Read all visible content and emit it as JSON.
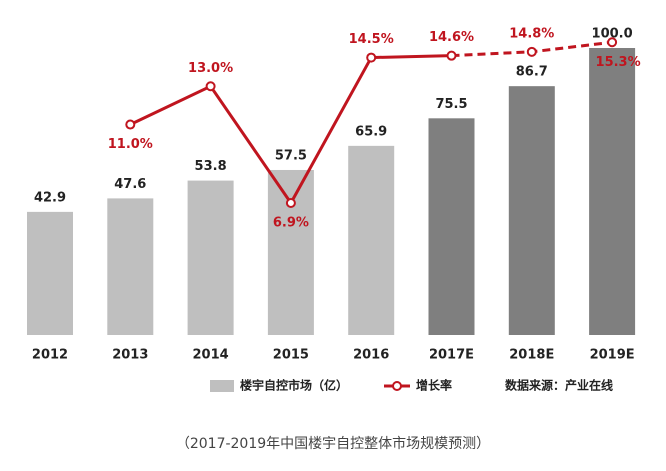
{
  "chart_data": {
    "type": "bar",
    "categories": [
      "2012",
      "2013",
      "2014",
      "2015",
      "2016",
      "2017E",
      "2018E",
      "2019E"
    ],
    "series": [
      {
        "name": "楼宇自控市场（亿）",
        "colors": [
          "#bfbfbf",
          "#bfbfbf",
          "#bfbfbf",
          "#bfbfbf",
          "#bfbfbf",
          "#7f7f7f",
          "#7f7f7f",
          "#7f7f7f"
        ],
        "color": "#bfbfbf",
        "values": [
          42.9,
          47.6,
          53.8,
          57.5,
          65.9,
          75.5,
          86.7,
          100.0
        ],
        "value_labels": [
          "42.9",
          "47.6",
          "53.8",
          "57.5",
          "65.9",
          "75.5",
          "86.7",
          "100.0"
        ]
      },
      {
        "name": "增长率",
        "type": "line",
        "axis": "y2",
        "color": "#c0151f",
        "dashed_from_index": 5,
        "values": [
          null,
          11.0,
          13.0,
          6.9,
          14.5,
          14.6,
          14.8,
          15.3
        ],
        "value_labels": [
          null,
          "11.0%",
          "13.0%",
          "6.9%",
          "14.5%",
          "14.6%",
          "14.8%",
          "15.3%"
        ]
      }
    ],
    "ylim": [
      0,
      100
    ],
    "y2lim": [
      0,
      15
    ],
    "source": "数据来源：产业在线",
    "caption": "（2017-2019年中国楼宇自控整体市场规模预测）"
  }
}
